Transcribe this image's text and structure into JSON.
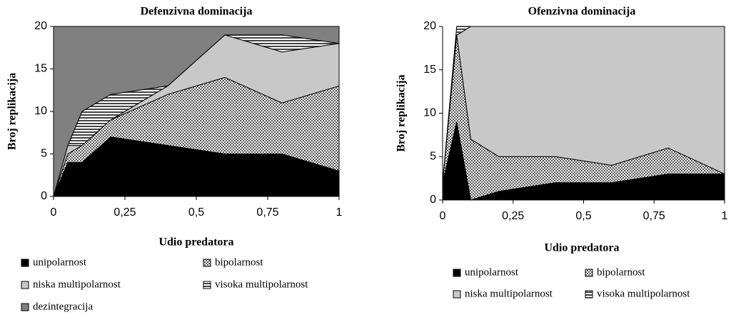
{
  "chart_data": [
    {
      "type": "stacked-area",
      "title": "Defenzivna dominacija",
      "xlabel": "Udio predatora",
      "ylabel": "Broj replikacija",
      "x": [
        0,
        0.05,
        0.1,
        0.2,
        0.4,
        0.6,
        0.8,
        1
      ],
      "xlim": [
        0,
        1
      ],
      "ylim": [
        0,
        20
      ],
      "xticks": [
        0,
        {
          "value": 0.25,
          "label": "0,25"
        },
        {
          "value": 0.5,
          "label": "0,5"
        },
        {
          "value": 0.75,
          "label": "0,75"
        },
        1
      ],
      "yticks": [
        0,
        5,
        10,
        15,
        20
      ],
      "series": [
        {
          "name": "unipolarnost",
          "color": "#000000",
          "pattern": "solid",
          "values": [
            0,
            4,
            4,
            7,
            6,
            5,
            5,
            3
          ]
        },
        {
          "name": "bipolarnost",
          "color": "#808080",
          "pattern": "dots",
          "values": [
            0,
            1,
            2,
            2,
            6,
            9,
            6,
            10
          ]
        },
        {
          "name": "niska multipolarnost",
          "color": "#c8c8c8",
          "pattern": "solid",
          "values": [
            0,
            1,
            0,
            0,
            1,
            5,
            6,
            5
          ]
        },
        {
          "name": "visoka multipolarnost",
          "color": "#606060",
          "pattern": "horizontal",
          "values": [
            0,
            0,
            4,
            3,
            0,
            0,
            2,
            0
          ]
        },
        {
          "name": "dezintegracija",
          "color": "#808080",
          "pattern": "solid",
          "values": [
            20,
            14,
            10,
            8,
            7,
            1,
            1,
            2
          ]
        }
      ]
    },
    {
      "type": "stacked-area",
      "title": "Ofenzivna dominacija",
      "xlabel": "Udio predatora",
      "ylabel": "Broj replikacija",
      "x": [
        0,
        0.05,
        0.1,
        0.2,
        0.4,
        0.6,
        0.8,
        1
      ],
      "xlim": [
        0,
        1
      ],
      "ylim": [
        0,
        20
      ],
      "xticks": [
        0,
        {
          "value": 0.25,
          "label": "0,25"
        },
        {
          "value": 0.5,
          "label": "0,5"
        },
        {
          "value": 0.75,
          "label": "0,75"
        },
        1
      ],
      "yticks": [
        0,
        5,
        10,
        15,
        20
      ],
      "series": [
        {
          "name": "unipolarnost",
          "color": "#000000",
          "pattern": "solid",
          "values": [
            2,
            9,
            0,
            1,
            2,
            2,
            3,
            3
          ]
        },
        {
          "name": "bipolarnost",
          "color": "#808080",
          "pattern": "dots",
          "values": [
            0,
            10,
            7,
            4,
            3,
            2,
            3,
            0
          ]
        },
        {
          "name": "niska multipolarnost",
          "color": "#c8c8c8",
          "pattern": "solid",
          "values": [
            0,
            0,
            13,
            15,
            15,
            16,
            14,
            17
          ]
        },
        {
          "name": "visoka multipolarnost",
          "color": "#606060",
          "pattern": "horizontal",
          "values": [
            0,
            1,
            0,
            0,
            0,
            0,
            0,
            0
          ]
        }
      ]
    }
  ]
}
